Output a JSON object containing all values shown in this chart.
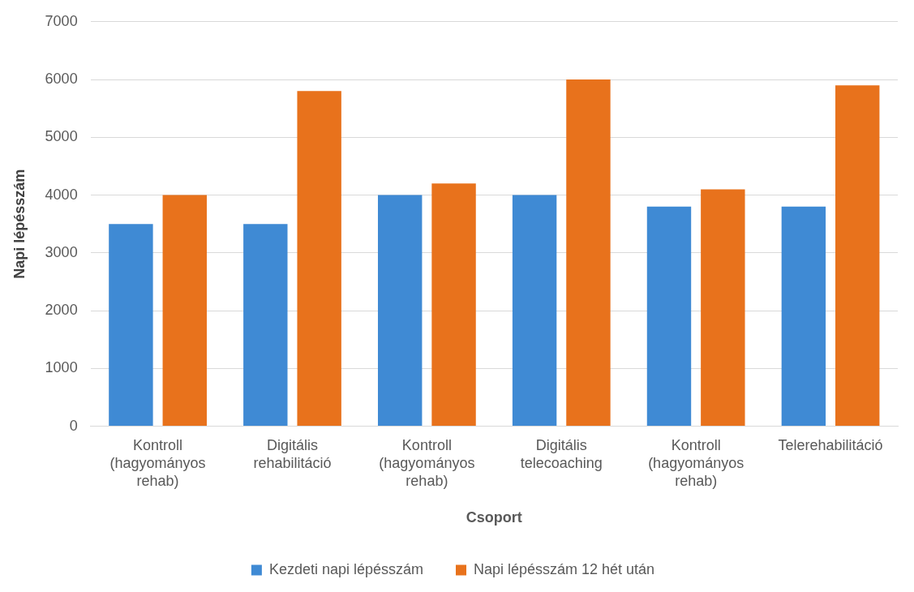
{
  "chart_data": {
    "type": "bar",
    "xlabel": "Csoport",
    "ylabel": "Napi lépésszám",
    "categories": [
      "Kontroll (hagyományos rehab)",
      "Digitális rehabilitáció",
      "Kontroll (hagyományos rehab)",
      "Digitális telecoaching",
      "Kontroll (hagyományos rehab)",
      "Telerehabilitáció"
    ],
    "series": [
      {
        "name": "Kezdeti napi lépésszám",
        "color": "#3f8ad4",
        "values": [
          3500,
          3500,
          4000,
          4000,
          3800,
          3800
        ]
      },
      {
        "name": "Napi lépésszám 12 hét után",
        "color": "#e8721c",
        "values": [
          4000,
          5800,
          4200,
          6000,
          4100,
          5900
        ]
      }
    ],
    "ylim": [
      0,
      7000
    ],
    "yticks": [
      0,
      1000,
      2000,
      3000,
      4000,
      5000,
      6000,
      7000
    ],
    "grid": "y",
    "legend": "bottom"
  }
}
